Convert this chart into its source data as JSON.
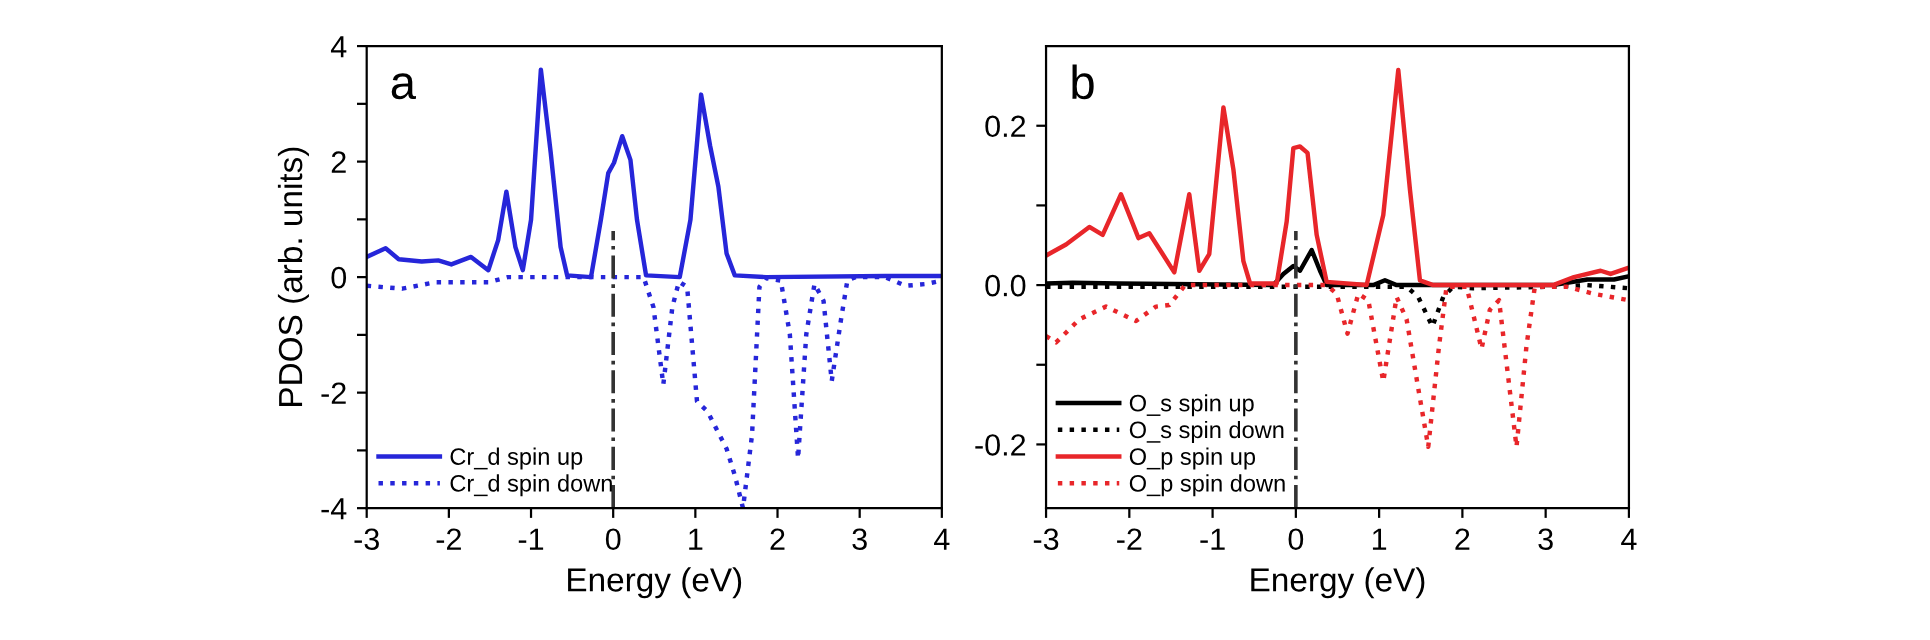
{
  "chart_data": [
    {
      "type": "line",
      "xlabel": "Energy (eV)",
      "ylabel": "PDOS (arb. units)",
      "annotations": [
        "a"
      ],
      "xlim": [
        -3,
        4
      ],
      "ylim": [
        -4,
        4
      ],
      "xticks": [
        -3,
        -2,
        -1,
        0,
        1,
        2,
        3,
        4
      ],
      "yticks": [
        -4,
        {
          "value": -3,
          "label": null
        },
        -2,
        {
          "value": -1,
          "label": null
        },
        0,
        {
          "value": 1,
          "label": null
        },
        2,
        {
          "value": 3,
          "label": null
        },
        4
      ],
      "legend": "bottom left",
      "grid": false,
      "ref_lines": [
        {
          "axis": "x",
          "value": 0,
          "color": "#333333",
          "line_style": "dashdot"
        }
      ],
      "series": [
        {
          "name": "Cr_d spin up",
          "color": "#2626d9",
          "line_style": "solid",
          "x": [
            -3,
            -2.77,
            -2.61,
            -2.33,
            -2.13,
            -1.97,
            -1.73,
            -1.52,
            -1.4,
            -1.3,
            -1.19,
            -1.1,
            -1.0,
            -0.88,
            -0.76,
            -0.64,
            -0.56,
            -0.27,
            -0.15,
            -0.06,
            0.01,
            0.11,
            0.21,
            0.29,
            0.4,
            0.81,
            0.94,
            1.07,
            1.18,
            1.28,
            1.38,
            1.48,
            1.86,
            3.31,
            4.0
          ],
          "values": [
            0.35,
            0.5,
            0.31,
            0.27,
            0.29,
            0.22,
            0.35,
            0.12,
            0.64,
            1.48,
            0.52,
            0.12,
            0.99,
            3.59,
            2.15,
            0.52,
            0.03,
            0,
            0.99,
            1.8,
            1.98,
            2.44,
            2.03,
            0.99,
            0.03,
            0,
            0.99,
            3.16,
            2.27,
            1.57,
            0.41,
            0.03,
            0,
            0.02,
            0.02
          ]
        },
        {
          "name": "Cr_d spin down",
          "color": "#2626d9",
          "line_style": "dotted",
          "x": [
            -3,
            -2.57,
            -2.17,
            -1.52,
            -1.28,
            0.37,
            0.49,
            0.61,
            0.72,
            0.8,
            0.9,
            1.02,
            1.15,
            1.38,
            1.48,
            1.58,
            1.69,
            1.78,
            1.86,
            2.04,
            2.15,
            2.25,
            2.35,
            2.45,
            2.56,
            2.66,
            2.77,
            2.85,
            2.95,
            3.31,
            3.56,
            3.8,
            4.0
          ],
          "values": [
            -0.15,
            -0.2,
            -0.09,
            -0.09,
            0,
            0,
            -0.52,
            -1.86,
            -0.52,
            -0.08,
            -0.17,
            -2.15,
            -2.33,
            -2.97,
            -3.43,
            -4.0,
            -2.73,
            -0.17,
            -0.02,
            -0.06,
            -0.99,
            -3.14,
            -0.99,
            -0.12,
            -0.41,
            -1.8,
            -0.76,
            -0.06,
            0,
            0,
            -0.15,
            -0.12,
            -0.06
          ]
        }
      ]
    },
    {
      "type": "line",
      "xlabel": "Energy (eV)",
      "annotations": [
        "b"
      ],
      "xlim": [
        -3,
        4
      ],
      "ylim": [
        -0.28,
        0.3
      ],
      "xticks": [
        -3,
        -2,
        -1,
        0,
        1,
        2,
        3,
        4
      ],
      "yticks": [
        -0.2,
        {
          "value": -0.1,
          "label": null
        },
        {
          "value": 0,
          "label": "0.0"
        },
        {
          "value": 0.1,
          "label": null
        },
        0.2
      ],
      "legend": "bottom left",
      "grid": false,
      "ref_lines": [
        {
          "axis": "x",
          "value": 0,
          "color": "#333333",
          "line_style": "dashdot"
        }
      ],
      "series": [
        {
          "name": "O_s spin up",
          "color": "#000000",
          "line_style": "solid",
          "x": [
            -3,
            -2.68,
            -2.12,
            -0.27,
            -0.15,
            -0.03,
            0.05,
            0.19,
            0.29,
            0.37,
            0.93,
            1.07,
            1.21,
            3.09,
            3.5,
            3.82,
            4.0
          ],
          "values": [
            0.002,
            0.003,
            0.002,
            0,
            0.014,
            0.024,
            0.018,
            0.044,
            0.018,
            0,
            0,
            0.006,
            0,
            0,
            0.007,
            0.007,
            0.011
          ]
        },
        {
          "name": "O_s spin down",
          "color": "#000000",
          "line_style": "dotted",
          "x": [
            -3,
            -2.12,
            1.33,
            1.47,
            1.64,
            1.77,
            1.89,
            2.13,
            3.09,
            3.5,
            4.0
          ],
          "values": [
            -0.002,
            -0.002,
            -0.002,
            -0.015,
            -0.052,
            -0.015,
            -0.002,
            -0.004,
            -0.002,
            0,
            -0.004
          ]
        },
        {
          "name": "O_p spin up",
          "color": "#e8262a",
          "line_style": "solid",
          "x": [
            -3,
            -2.76,
            -2.48,
            -2.32,
            -2.1,
            -1.89,
            -1.76,
            -1.6,
            -1.46,
            -1.28,
            -1.16,
            -1.04,
            -0.87,
            -0.75,
            -0.63,
            -0.55,
            -0.23,
            -0.11,
            -0.03,
            0.05,
            0.14,
            0.25,
            0.37,
            0.85,
            1.05,
            1.23,
            1.37,
            1.49,
            1.65,
            3.09,
            3.34,
            3.66,
            3.78,
            4.0
          ],
          "values": [
            0.037,
            0.051,
            0.073,
            0.063,
            0.114,
            0.059,
            0.065,
            0.039,
            0.016,
            0.114,
            0.018,
            0.039,
            0.223,
            0.145,
            0.03,
            0.002,
            0.002,
            0.08,
            0.172,
            0.174,
            0.166,
            0.063,
            0.004,
            0,
            0.088,
            0.27,
            0.12,
            0.006,
            0,
            0,
            0.01,
            0.018,
            0.014,
            0.022
          ]
        },
        {
          "name": "O_p spin down",
          "color": "#e8262a",
          "line_style": "dotted",
          "x": [
            -3,
            -2.88,
            -2.6,
            -2.28,
            -1.92,
            -1.68,
            -1.52,
            -1.33,
            0.37,
            0.49,
            0.62,
            0.75,
            0.87,
            1.05,
            1.21,
            1.33,
            1.49,
            1.59,
            1.72,
            1.81,
            2.05,
            2.23,
            2.33,
            2.44,
            2.65,
            2.77,
            2.87,
            3.25,
            3.58,
            4.0
          ],
          "values": [
            -0.064,
            -0.072,
            -0.043,
            -0.027,
            -0.045,
            -0.027,
            -0.025,
            0,
            0,
            -0.011,
            -0.061,
            -0.011,
            -0.019,
            -0.121,
            -0.015,
            -0.043,
            -0.142,
            -0.203,
            -0.076,
            -0.002,
            -0.002,
            -0.08,
            -0.031,
            -0.019,
            -0.203,
            -0.076,
            -0.002,
            -0.002,
            -0.011,
            -0.019
          ]
        }
      ]
    }
  ]
}
